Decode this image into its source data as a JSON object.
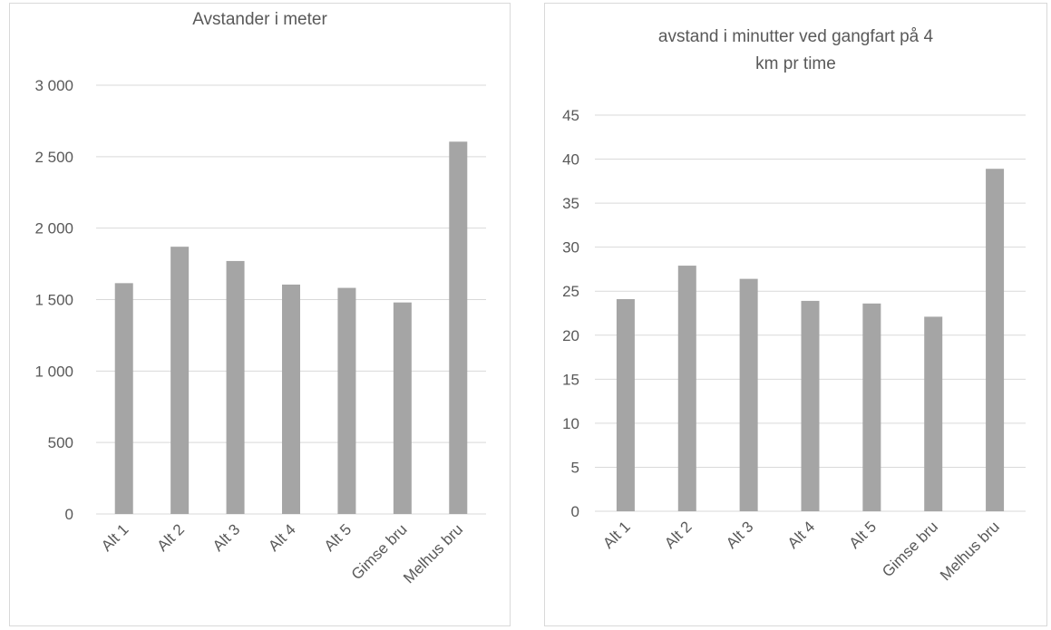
{
  "chart_data": [
    {
      "type": "bar",
      "title": "Avstander i meter",
      "categories": [
        "Alt 1",
        "Alt 2",
        "Alt 3",
        "Alt 4",
        "Alt 5",
        "Gimse bru",
        "Melhus bru"
      ],
      "values": [
        1615,
        1870,
        1770,
        1605,
        1582,
        1480,
        2605
      ],
      "yticks": [
        "0",
        "500",
        "1 000",
        "1 500",
        "2 000",
        "2 500",
        "3 000"
      ],
      "ylim": [
        0,
        3000
      ],
      "grid": true,
      "bar_color": "#a5a5a5"
    },
    {
      "type": "bar",
      "title": "avstand i minutter ved gangfart på 4 km pr time",
      "categories": [
        "Alt 1",
        "Alt 2",
        "Alt 3",
        "Alt 4",
        "Alt 5",
        "Gimse bru",
        "Melhus bru"
      ],
      "values": [
        24.1,
        27.9,
        26.4,
        23.9,
        23.6,
        22.1,
        38.9
      ],
      "yticks": [
        "0",
        "5",
        "10",
        "15",
        "20",
        "25",
        "30",
        "35",
        "40",
        "45"
      ],
      "ylim": [
        0,
        45
      ],
      "grid": true,
      "bar_color": "#a5a5a5"
    }
  ]
}
